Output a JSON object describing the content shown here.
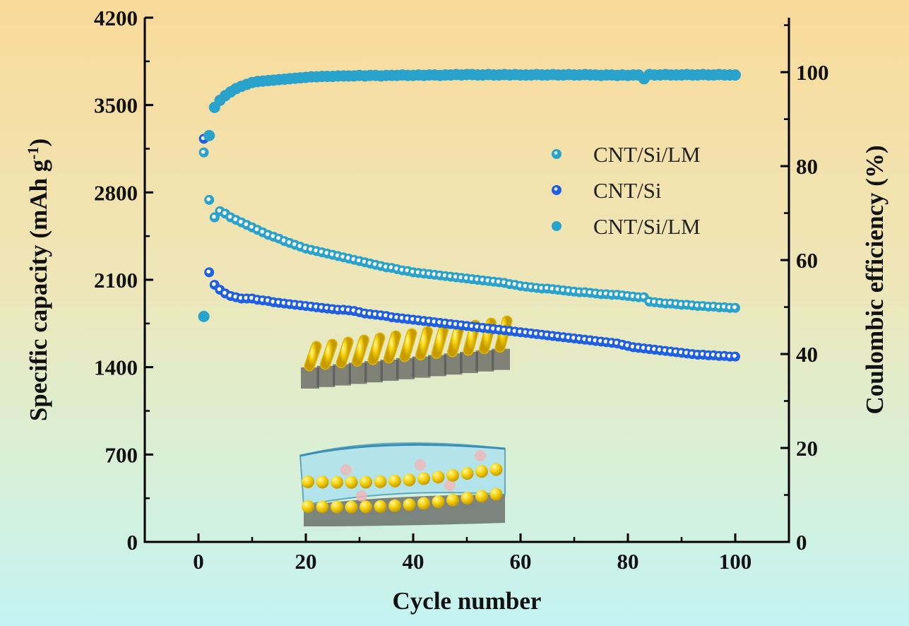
{
  "chart_data": {
    "type": "scatter",
    "xlabel": "Cycle number",
    "ylabel": "Specific capacity (mAh g",
    "ylabel_sup": "-1",
    "ylabel_close": ")",
    "y2label": "Coulombic efficiency (%)",
    "xlim": [
      -10,
      110
    ],
    "ylim": [
      0,
      4200
    ],
    "y2lim": [
      0,
      111.6
    ],
    "xticks": [
      0,
      20,
      40,
      60,
      80,
      100
    ],
    "yticks": [
      0,
      700,
      1400,
      2100,
      2800,
      3500,
      4200
    ],
    "y2ticks": [
      0,
      20,
      40,
      60,
      80,
      100
    ],
    "legend_position": "right-upper",
    "series": [
      {
        "name": "CNT/Si/LM",
        "axis": "left",
        "color": "#2aa3cc",
        "style": "hollow",
        "values": [
          3120,
          2740,
          2600,
          2650,
          2630,
          2600,
          2580,
          2560,
          2540,
          2520,
          2500,
          2480,
          2460,
          2445,
          2430,
          2410,
          2395,
          2380,
          2365,
          2350,
          2340,
          2330,
          2320,
          2310,
          2300,
          2290,
          2280,
          2270,
          2260,
          2250,
          2240,
          2230,
          2220,
          2210,
          2200,
          2195,
          2185,
          2175,
          2170,
          2160,
          2155,
          2150,
          2145,
          2140,
          2135,
          2130,
          2125,
          2120,
          2115,
          2110,
          2105,
          2100,
          2095,
          2090,
          2085,
          2080,
          2075,
          2065,
          2060,
          2050,
          2045,
          2040,
          2035,
          2030,
          2030,
          2025,
          2020,
          2015,
          2010,
          2005,
          2000,
          2000,
          1995,
          1990,
          1985,
          1985,
          1980,
          1980,
          1975,
          1970,
          1965,
          1960,
          1960,
          1925,
          1920,
          1915,
          1910,
          1910,
          1905,
          1900,
          1900,
          1895,
          1890,
          1890,
          1885,
          1885,
          1880,
          1880,
          1875,
          1875
        ]
      },
      {
        "name": "CNT/Si",
        "axis": "left",
        "color": "#1f5fe0",
        "style": "hollow",
        "values": [
          3230,
          2160,
          2060,
          2020,
          1990,
          1970,
          1960,
          1950,
          1950,
          1950,
          1940,
          1935,
          1930,
          1920,
          1915,
          1910,
          1905,
          1900,
          1895,
          1890,
          1885,
          1880,
          1875,
          1870,
          1865,
          1860,
          1860,
          1855,
          1850,
          1840,
          1830,
          1825,
          1820,
          1815,
          1810,
          1800,
          1795,
          1790,
          1785,
          1780,
          1775,
          1770,
          1765,
          1760,
          1755,
          1750,
          1745,
          1740,
          1735,
          1730,
          1725,
          1720,
          1715,
          1710,
          1705,
          1700,
          1695,
          1690,
          1685,
          1680,
          1675,
          1670,
          1665,
          1660,
          1655,
          1650,
          1645,
          1640,
          1635,
          1630,
          1625,
          1620,
          1615,
          1610,
          1605,
          1600,
          1595,
          1590,
          1580,
          1570,
          1560,
          1555,
          1550,
          1545,
          1540,
          1535,
          1530,
          1525,
          1520,
          1515,
          1510,
          1505,
          1500,
          1500,
          1495,
          1495,
          1490,
          1490,
          1485,
          1485
        ]
      },
      {
        "name": "CNT/Si/LM",
        "axis": "right",
        "color": "#2aa3cc",
        "style": "filled",
        "values": [
          48,
          86.5,
          92.5,
          94,
          95,
          95.8,
          96.5,
          97,
          97.4,
          97.8,
          98,
          98.1,
          98.2,
          98.3,
          98.4,
          98.5,
          98.6,
          98.7,
          98.8,
          98.9,
          99,
          99,
          99.1,
          99.1,
          99.1,
          99.2,
          99.2,
          99.2,
          99.2,
          99.3,
          99.2,
          99.3,
          99.3,
          99.2,
          99.3,
          99.3,
          99.3,
          99.4,
          99.3,
          99.3,
          99.4,
          99.3,
          99.4,
          99.4,
          99.3,
          99.4,
          99.4,
          99.5,
          99.4,
          99.5,
          99.5,
          99.4,
          99.4,
          99.5,
          99.4,
          99.4,
          99.5,
          99.4,
          99.5,
          99.4,
          99.4,
          99.4,
          99.5,
          99.4,
          99.4,
          99.5,
          99.4,
          99.4,
          99.5,
          99.4,
          99.4,
          99.5,
          99.4,
          99.4,
          99.3,
          99.4,
          99.4,
          99.3,
          99.4,
          99.3,
          99.4,
          99.4,
          98.6,
          99.5,
          99.4,
          99.4,
          99.5,
          99.4,
          99.4,
          99.4,
          99.5,
          99.4,
          99.4,
          99.5,
          99.4,
          99.4,
          99.5,
          99.4,
          99.4,
          99.4
        ]
      }
    ]
  }
}
